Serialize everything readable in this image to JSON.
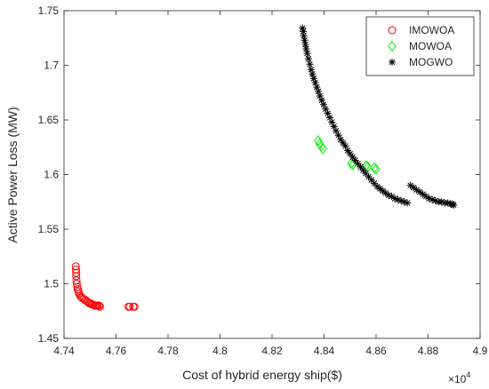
{
  "chart_data": {
    "type": "scatter",
    "xlabel": "Cost of hybrid energy ship($)",
    "ylabel": "Active Power Loss (MW)",
    "x_multiplier_label": "×10",
    "x_multiplier_exp": "4",
    "xlim": [
      4.74,
      4.9
    ],
    "ylim": [
      1.45,
      1.75
    ],
    "x_ticks": [
      "4.74",
      "4.76",
      "4.78",
      "4.8",
      "4.82",
      "4.84",
      "4.86",
      "4.88",
      "4.9"
    ],
    "y_ticks": [
      "1.45",
      "1.5",
      "1.55",
      "1.6",
      "1.65",
      "1.7",
      "1.75"
    ],
    "grid": false,
    "legend_position": "top-right",
    "series": [
      {
        "name": "IMOWOA",
        "marker": "circle",
        "color": "#ff0000",
        "points": [
          [
            4.7445,
            1.516
          ],
          [
            4.7446,
            1.513
          ],
          [
            4.7447,
            1.51
          ],
          [
            4.7447,
            1.507
          ],
          [
            4.7448,
            1.503
          ],
          [
            4.7449,
            1.5
          ],
          [
            4.7451,
            1.497
          ],
          [
            4.7453,
            1.495
          ],
          [
            4.7455,
            1.493
          ],
          [
            4.7458,
            1.491
          ],
          [
            4.7462,
            1.489
          ],
          [
            4.7466,
            1.488
          ],
          [
            4.747,
            1.487
          ],
          [
            4.7476,
            1.486
          ],
          [
            4.7482,
            1.485
          ],
          [
            4.7488,
            1.484
          ],
          [
            4.7493,
            1.483
          ],
          [
            4.7498,
            1.482
          ],
          [
            4.7502,
            1.482
          ],
          [
            4.7507,
            1.481
          ],
          [
            4.7512,
            1.481
          ],
          [
            4.7517,
            1.48
          ],
          [
            4.7521,
            1.48
          ],
          [
            4.7525,
            1.48
          ],
          [
            4.753,
            1.48
          ],
          [
            4.7535,
            1.48
          ],
          [
            4.7538,
            1.479
          ],
          [
            4.7648,
            1.479
          ],
          [
            4.7653,
            1.479
          ],
          [
            4.7666,
            1.479
          ],
          [
            4.7671,
            1.479
          ]
        ]
      },
      {
        "name": "MOWOA",
        "marker": "diamond",
        "color": "#00ee00",
        "points": [
          [
            4.8377,
            1.631
          ],
          [
            4.8383,
            1.628
          ],
          [
            4.8389,
            1.626
          ],
          [
            4.8395,
            1.624
          ],
          [
            4.8505,
            1.61
          ],
          [
            4.8511,
            1.609
          ],
          [
            4.8562,
            1.608
          ],
          [
            4.8568,
            1.607
          ],
          [
            4.8593,
            1.606
          ],
          [
            4.8599,
            1.605
          ]
        ]
      },
      {
        "name": "MOGWO",
        "marker": "star",
        "color": "#000000",
        "points": [
          [
            4.8317,
            1.734
          ],
          [
            4.832,
            1.731
          ],
          [
            4.8322,
            1.727
          ],
          [
            4.8325,
            1.723
          ],
          [
            4.8328,
            1.719
          ],
          [
            4.8331,
            1.715
          ],
          [
            4.8335,
            1.711
          ],
          [
            4.834,
            1.706
          ],
          [
            4.8345,
            1.701
          ],
          [
            4.835,
            1.696
          ],
          [
            4.8355,
            1.692
          ],
          [
            4.836,
            1.688
          ],
          [
            4.8366,
            1.684
          ],
          [
            4.8372,
            1.68
          ],
          [
            4.8378,
            1.676
          ],
          [
            4.8384,
            1.672
          ],
          [
            4.8391,
            1.668
          ],
          [
            4.8398,
            1.664
          ],
          [
            4.8406,
            1.66
          ],
          [
            4.8414,
            1.656
          ],
          [
            4.8422,
            1.652
          ],
          [
            4.843,
            1.648
          ],
          [
            4.8438,
            1.644
          ],
          [
            4.8446,
            1.64
          ],
          [
            4.8455,
            1.636
          ],
          [
            4.8464,
            1.632
          ],
          [
            4.8473,
            1.629
          ],
          [
            4.8482,
            1.626
          ],
          [
            4.8491,
            1.622
          ],
          [
            4.85,
            1.619
          ],
          [
            4.851,
            1.616
          ],
          [
            4.852,
            1.613
          ],
          [
            4.853,
            1.61
          ],
          [
            4.854,
            1.607
          ],
          [
            4.855,
            1.604
          ],
          [
            4.856,
            1.601
          ],
          [
            4.8571,
            1.598
          ],
          [
            4.8582,
            1.595
          ],
          [
            4.8593,
            1.592
          ],
          [
            4.8604,
            1.589
          ],
          [
            4.8615,
            1.587
          ],
          [
            4.8626,
            1.585
          ],
          [
            4.8637,
            1.583
          ],
          [
            4.8648,
            1.581
          ],
          [
            4.866,
            1.58
          ],
          [
            4.8672,
            1.578
          ],
          [
            4.8684,
            1.577
          ],
          [
            4.8696,
            1.576
          ],
          [
            4.8708,
            1.575
          ],
          [
            4.872,
            1.574
          ],
          [
            4.8732,
            1.59
          ],
          [
            4.8744,
            1.588
          ],
          [
            4.8756,
            1.586
          ],
          [
            4.8768,
            1.584
          ],
          [
            4.878,
            1.582
          ],
          [
            4.8792,
            1.58
          ],
          [
            4.8804,
            1.578
          ],
          [
            4.8816,
            1.577
          ],
          [
            4.8828,
            1.576
          ],
          [
            4.884,
            1.575
          ],
          [
            4.8852,
            1.575
          ],
          [
            4.8864,
            1.574
          ],
          [
            4.8876,
            1.574
          ],
          [
            4.8888,
            1.573
          ],
          [
            4.8894,
            1.573
          ],
          [
            4.8898,
            1.572
          ]
        ]
      }
    ]
  }
}
